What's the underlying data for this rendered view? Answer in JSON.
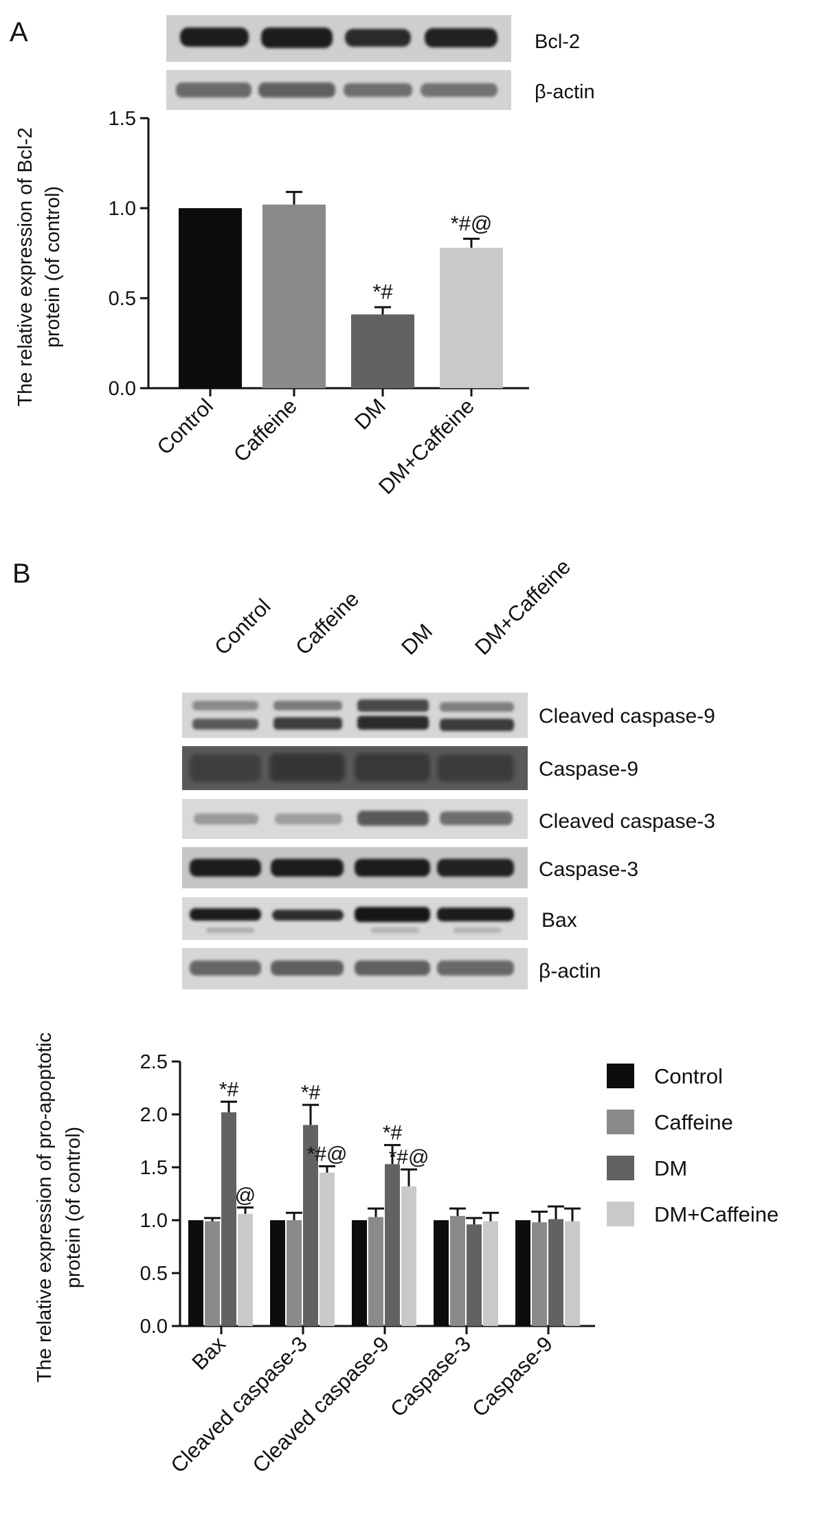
{
  "panels": {
    "a": {
      "letter": "A",
      "blot_labels": [
        "Bcl-2",
        "β-actin"
      ]
    },
    "b": {
      "letter": "B",
      "lane_labels": [
        "Control",
        "Caffeine",
        "DM",
        "DM+Caffeine"
      ],
      "blot_labels": [
        "Cleaved caspase-9",
        "Caspase-9",
        "Cleaved caspase-3",
        "Caspase-3",
        "Bax",
        "β-actin"
      ]
    }
  },
  "colors": {
    "Control": "#0d0d0d",
    "Caffeine": "#8a8a8a",
    "DM": "#626262",
    "DM+Caffeine": "#c9c9c9"
  },
  "chart_data": [
    {
      "type": "bar",
      "categories": [
        "Control",
        "Caffeine",
        "DM",
        "DM+Caffeine"
      ],
      "values": [
        1.0,
        1.02,
        0.41,
        0.78
      ],
      "errors": [
        0,
        0.07,
        0.04,
        0.05
      ],
      "annotations": [
        "",
        "",
        "*#",
        "*#@"
      ],
      "ylabel_lines": [
        "The relative expression of Bcl-2",
        "protein (of control)"
      ],
      "ylim": [
        0,
        1.5
      ],
      "yticks": [
        "0.0",
        "0.5",
        "1.0",
        "1.5"
      ],
      "grid": false,
      "legend": "none"
    },
    {
      "type": "bar",
      "categories": [
        "Bax",
        "Cleaved caspase-3",
        "Cleaved caspase-9",
        "Caspase-3",
        "Caspase-9"
      ],
      "series": [
        {
          "name": "Control",
          "values": [
            1.0,
            1.0,
            1.0,
            1.0,
            1.0
          ],
          "errors": [
            0,
            0,
            0,
            0,
            0
          ],
          "annotations": [
            "",
            "",
            "",
            "",
            ""
          ]
        },
        {
          "name": "Caffeine",
          "values": [
            0.99,
            1.0,
            1.03,
            1.04,
            0.98
          ],
          "errors": [
            0.03,
            0.07,
            0.08,
            0.07,
            0.1
          ],
          "annotations": [
            "",
            "",
            "",
            "",
            ""
          ]
        },
        {
          "name": "DM",
          "values": [
            2.02,
            1.9,
            1.53,
            0.96,
            1.01
          ],
          "errors": [
            0.1,
            0.19,
            0.18,
            0.06,
            0.12
          ],
          "annotations": [
            "*#",
            "*#",
            "*#",
            "",
            ""
          ]
        },
        {
          "name": "DM+Caffeine",
          "values": [
            1.06,
            1.45,
            1.32,
            0.99,
            0.99
          ],
          "errors": [
            0.06,
            0.06,
            0.16,
            0.08,
            0.12
          ],
          "annotations": [
            "@",
            "*#@",
            "*#@",
            "",
            ""
          ]
        }
      ],
      "ylabel_lines": [
        "The relative expression of pro-apoptotic",
        "protein (of control)"
      ],
      "ylim": [
        0,
        2.5
      ],
      "yticks": [
        "0.0",
        "0.5",
        "1.0",
        "1.5",
        "2.0",
        "2.5"
      ],
      "grid": false,
      "legend": "right"
    }
  ]
}
